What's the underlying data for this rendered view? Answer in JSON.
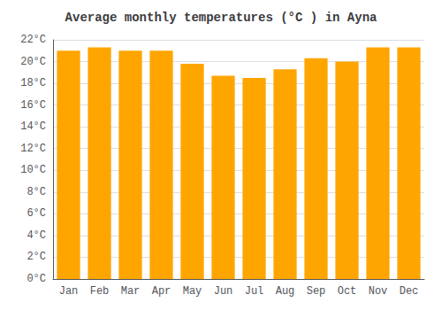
{
  "chart_data": {
    "type": "bar",
    "title": "Average monthly temperatures (°C ) in Ayna",
    "categories": [
      "Jan",
      "Feb",
      "Mar",
      "Apr",
      "May",
      "Jun",
      "Jul",
      "Aug",
      "Sep",
      "Oct",
      "Nov",
      "Dec"
    ],
    "values": [
      21.0,
      21.3,
      21.0,
      21.0,
      19.8,
      18.7,
      18.5,
      19.3,
      20.3,
      20.0,
      21.3,
      21.3
    ],
    "color": "#FFA500",
    "ylim": [
      0,
      22
    ],
    "yticks": [
      {
        "value": 0,
        "label": "0°C"
      },
      {
        "value": 2,
        "label": "2°C"
      },
      {
        "value": 4,
        "label": "4°C"
      },
      {
        "value": 6,
        "label": "6°C"
      },
      {
        "value": 8,
        "label": "8°C"
      },
      {
        "value": 10,
        "label": "10°C"
      },
      {
        "value": 12,
        "label": "12°C"
      },
      {
        "value": 14,
        "label": "14°C"
      },
      {
        "value": 16,
        "label": "16°C"
      },
      {
        "value": 18,
        "label": "18°C"
      },
      {
        "value": 20,
        "label": "20°C"
      },
      {
        "value": 22,
        "label": "22°C"
      }
    ],
    "grid": true
  }
}
